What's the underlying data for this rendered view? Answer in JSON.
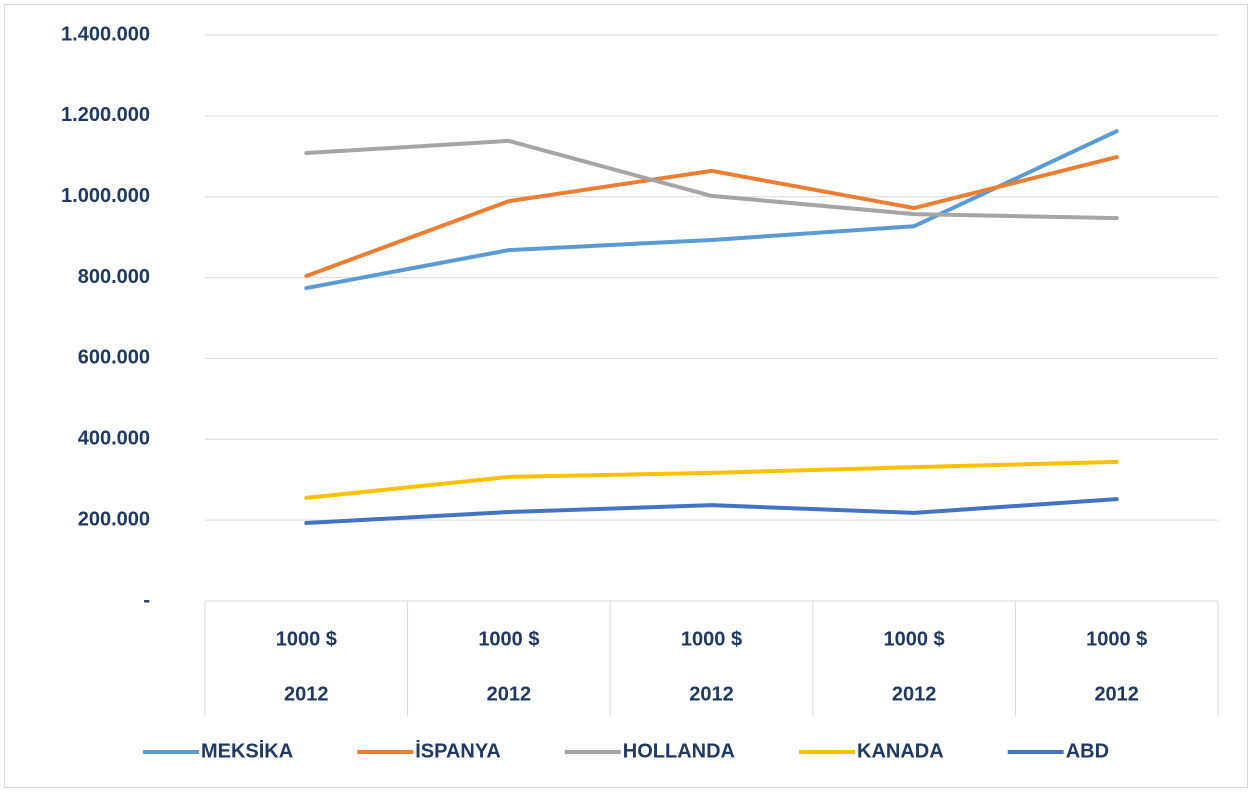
{
  "chart_data": {
    "type": "line",
    "categories": [
      [
        "1000 $",
        "2012"
      ],
      [
        "1000 $",
        "2012"
      ],
      [
        "1000 $",
        "2012"
      ],
      [
        "1000 $",
        "2012"
      ],
      [
        "1000 $",
        "2012"
      ]
    ],
    "series": [
      {
        "name": "MEKSİKA",
        "color": "#5b9bd5",
        "values": [
          774000,
          868000,
          893000,
          927000,
          1162000
        ]
      },
      {
        "name": "İSPANYA",
        "color": "#ed7d31",
        "values": [
          804000,
          989000,
          1064000,
          972000,
          1098000
        ]
      },
      {
        "name": "HOLLANDA",
        "color": "#a5a5a5",
        "values": [
          1108000,
          1138000,
          1002000,
          957000,
          947000
        ]
      },
      {
        "name": "KANADA",
        "color": "#ffc000",
        "values": [
          255000,
          307000,
          317000,
          331000,
          344000
        ]
      },
      {
        "name": "ABD",
        "color": "#4472c4",
        "values": [
          193000,
          220000,
          237000,
          218000,
          252000
        ]
      }
    ],
    "ylim": [
      0,
      1400000
    ],
    "yticks": [
      {
        "value": 0,
        "label": "-"
      },
      {
        "value": 200000,
        "label": "200.000"
      },
      {
        "value": 400000,
        "label": "400.000"
      },
      {
        "value": 600000,
        "label": "600.000"
      },
      {
        "value": 800000,
        "label": "800.000"
      },
      {
        "value": 1000000,
        "label": "1.000.000"
      },
      {
        "value": 1200000,
        "label": "1.200.000"
      },
      {
        "value": 1400000,
        "label": "1.400.000"
      }
    ],
    "grid": true,
    "legend": "bottom"
  }
}
